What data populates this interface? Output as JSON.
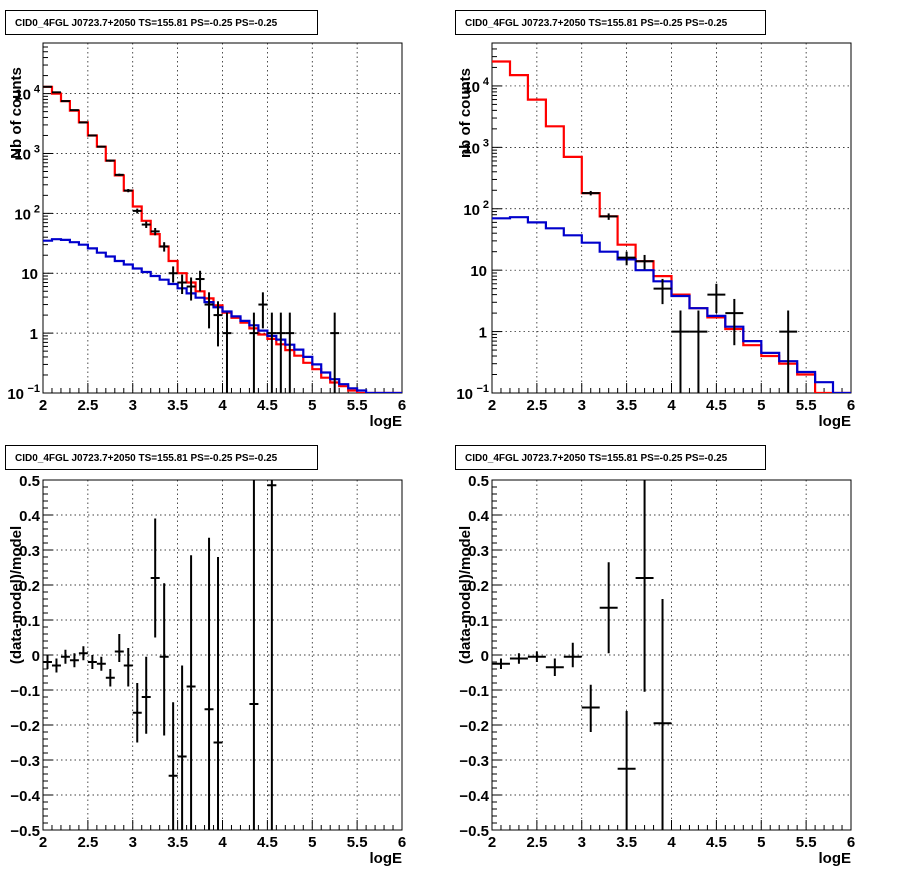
{
  "chart_data": [
    {
      "type": "histogram",
      "title": "CID0_4FGL J0723.7+2050 TS=155.81 PS=-0.25 PS=-0.25",
      "xlabel": "logE",
      "ylabel": "Nb of counts",
      "xlim": [
        2,
        6
      ],
      "ylim": [
        0.1,
        70000
      ],
      "yscale": "log",
      "grid": true,
      "xticks": [
        "2",
        "2.5",
        "3",
        "3.5",
        "4",
        "4.5",
        "5",
        "5.5",
        "6"
      ],
      "yticks": [
        {
          "v": 0.1,
          "label": "10",
          "sup": "−1"
        },
        {
          "v": 1,
          "label": "1",
          "sup": ""
        },
        {
          "v": 10,
          "label": "10",
          "sup": ""
        },
        {
          "v": 100,
          "label": "10",
          "sup": "2"
        },
        {
          "v": 1000,
          "label": "10",
          "sup": "3"
        },
        {
          "v": 10000,
          "label": "10",
          "sup": "4"
        }
      ],
      "series": [
        {
          "kind": "step",
          "color": "#ff0000",
          "edges": [
            2.0,
            2.1,
            2.2,
            2.3,
            2.4,
            2.5,
            2.6,
            2.7,
            2.8,
            2.9,
            3.0,
            3.1,
            3.2,
            3.3,
            3.4,
            3.5,
            3.6,
            3.7,
            3.8,
            3.9,
            4.0,
            4.1,
            4.2,
            4.3,
            4.4,
            4.5,
            4.6,
            4.7,
            4.8,
            4.9,
            5.0,
            5.1,
            5.2,
            5.3,
            5.4,
            5.5,
            5.6,
            5.7,
            5.8,
            5.9,
            6.0
          ],
          "values": [
            13000,
            10000,
            7500,
            5200,
            3300,
            2000,
            1300,
            760,
            430,
            240,
            130,
            75,
            45,
            28,
            16,
            10,
            7,
            5,
            3.8,
            2.9,
            2.2,
            1.8,
            1.5,
            1.2,
            0.95,
            0.8,
            0.65,
            0.52,
            0.42,
            0.32,
            0.25,
            0.18,
            0.15,
            0.13,
            0.11,
            0.1,
            0.1,
            0.1,
            0.1,
            0.1
          ]
        },
        {
          "kind": "step",
          "color": "#0000cc",
          "edges": [
            2.0,
            2.1,
            2.2,
            2.3,
            2.4,
            2.5,
            2.6,
            2.7,
            2.8,
            2.9,
            3.0,
            3.1,
            3.2,
            3.3,
            3.4,
            3.5,
            3.6,
            3.7,
            3.8,
            3.9,
            4.0,
            4.1,
            4.2,
            4.3,
            4.4,
            4.5,
            4.6,
            4.7,
            4.8,
            4.9,
            5.0,
            5.1,
            5.2,
            5.3,
            5.4,
            5.5,
            5.6,
            5.7,
            5.8,
            5.9,
            6.0
          ],
          "values": [
            35,
            37,
            36,
            33,
            30,
            26,
            22,
            19,
            16,
            14,
            12,
            10.5,
            9,
            7.8,
            6.6,
            5.6,
            4.6,
            3.9,
            3.3,
            2.7,
            2.3,
            1.9,
            1.6,
            1.35,
            1.1,
            0.9,
            0.78,
            0.64,
            0.53,
            0.4,
            0.3,
            0.22,
            0.17,
            0.14,
            0.12,
            0.11,
            0.1,
            0.1,
            0.1,
            0.1
          ]
        },
        {
          "kind": "points",
          "color": "#000000",
          "points": [
            {
              "x": 2.05,
              "y": 13000,
              "ylo": 12900,
              "yhi": 13100
            },
            {
              "x": 2.15,
              "y": 10500,
              "ylo": 10400,
              "yhi": 10600
            },
            {
              "x": 2.25,
              "y": 7500,
              "ylo": 7400,
              "yhi": 7600
            },
            {
              "x": 2.35,
              "y": 5300,
              "ylo": 5200,
              "yhi": 5400
            },
            {
              "x": 2.45,
              "y": 3300,
              "ylo": 3240,
              "yhi": 3360
            },
            {
              "x": 2.55,
              "y": 2000,
              "ylo": 1960,
              "yhi": 2040
            },
            {
              "x": 2.65,
              "y": 1300,
              "ylo": 1260,
              "yhi": 1340
            },
            {
              "x": 2.75,
              "y": 760,
              "ylo": 730,
              "yhi": 790
            },
            {
              "x": 2.85,
              "y": 440,
              "ylo": 420,
              "yhi": 460
            },
            {
              "x": 2.95,
              "y": 240,
              "ylo": 225,
              "yhi": 255
            },
            {
              "x": 3.05,
              "y": 110,
              "ylo": 100,
              "yhi": 120
            },
            {
              "x": 3.15,
              "y": 65,
              "ylo": 57,
              "yhi": 73
            },
            {
              "x": 3.25,
              "y": 50,
              "ylo": 43,
              "yhi": 57
            },
            {
              "x": 3.35,
              "y": 28,
              "ylo": 23,
              "yhi": 33
            },
            {
              "x": 3.45,
              "y": 10,
              "ylo": 7,
              "yhi": 13
            },
            {
              "x": 3.55,
              "y": 7,
              "ylo": 4.5,
              "yhi": 9.5
            },
            {
              "x": 3.65,
              "y": 6,
              "ylo": 3.5,
              "yhi": 8.5
            },
            {
              "x": 3.75,
              "y": 8,
              "ylo": 5,
              "yhi": 11
            },
            {
              "x": 3.85,
              "y": 3,
              "ylo": 1.2,
              "yhi": 4.8
            },
            {
              "x": 3.95,
              "y": 2,
              "ylo": 0.6,
              "yhi": 3.4
            },
            {
              "x": 4.05,
              "y": 1,
              "ylo": 0.05,
              "yhi": 2.2
            },
            {
              "x": 4.35,
              "y": 1,
              "ylo": 0.05,
              "yhi": 2.2
            },
            {
              "x": 4.45,
              "y": 3,
              "ylo": 1.2,
              "yhi": 4.8
            },
            {
              "x": 4.55,
              "y": 1,
              "ylo": 0.05,
              "yhi": 2.2
            },
            {
              "x": 4.65,
              "y": 1,
              "ylo": 0.05,
              "yhi": 2.2
            },
            {
              "x": 4.75,
              "y": 1,
              "ylo": 0.05,
              "yhi": 2.2
            },
            {
              "x": 5.25,
              "y": 1,
              "ylo": 0.05,
              "yhi": 2.2
            }
          ]
        }
      ]
    },
    {
      "type": "histogram",
      "title": "CID0_4FGL J0723.7+2050 TS=155.81 PS=-0.25 PS=-0.25",
      "xlabel": "logE",
      "ylabel": "nb of counts",
      "xlim": [
        2,
        6
      ],
      "ylim": [
        0.1,
        50000
      ],
      "yscale": "log",
      "grid": true,
      "xticks": [
        "2",
        "2.5",
        "3",
        "3.5",
        "4",
        "4.5",
        "5",
        "5.5",
        "6"
      ],
      "yticks": [
        {
          "v": 0.1,
          "label": "10",
          "sup": "−1"
        },
        {
          "v": 1,
          "label": "1",
          "sup": ""
        },
        {
          "v": 10,
          "label": "10",
          "sup": ""
        },
        {
          "v": 100,
          "label": "10",
          "sup": "2"
        },
        {
          "v": 1000,
          "label": "10",
          "sup": "3"
        },
        {
          "v": 10000,
          "label": "10",
          "sup": "4"
        }
      ],
      "series": [
        {
          "kind": "step",
          "color": "#ff0000",
          "edges": [
            2.0,
            2.2,
            2.4,
            2.6,
            2.8,
            3.0,
            3.2,
            3.4,
            3.6,
            3.8,
            4.0,
            4.2,
            4.4,
            4.6,
            4.8,
            5.0,
            5.2,
            5.4,
            5.6,
            5.8,
            6.0
          ],
          "values": [
            25000,
            15000,
            6000,
            2200,
            700,
            180,
            75,
            26,
            14,
            8,
            4,
            2.4,
            1.7,
            1.1,
            0.6,
            0.4,
            0.3,
            0.2,
            0.1,
            0.1
          ]
        },
        {
          "kind": "step",
          "color": "#0000cc",
          "edges": [
            2.0,
            2.2,
            2.4,
            2.6,
            2.8,
            3.0,
            3.2,
            3.4,
            3.6,
            3.8,
            4.0,
            4.2,
            4.4,
            4.6,
            4.8,
            5.0,
            5.2,
            5.4,
            5.6,
            5.8,
            6.0
          ],
          "values": [
            70,
            73,
            60,
            48,
            37,
            28,
            20,
            15,
            10,
            6.6,
            3.8,
            2.4,
            1.8,
            1.2,
            0.7,
            0.45,
            0.33,
            0.22,
            0.15,
            0.1
          ]
        },
        {
          "kind": "points",
          "color": "#000000",
          "points": [
            {
              "x": 3.1,
              "y": 180,
              "ylo": 165,
              "yhi": 195
            },
            {
              "x": 3.3,
              "y": 75,
              "ylo": 66,
              "yhi": 84
            },
            {
              "x": 3.5,
              "y": 16,
              "ylo": 12,
              "yhi": 20
            },
            {
              "x": 3.7,
              "y": 14,
              "ylo": 10.3,
              "yhi": 17.7
            },
            {
              "x": 3.9,
              "y": 5,
              "ylo": 2.8,
              "yhi": 7.2
            },
            {
              "x": 4.1,
              "y": 1,
              "ylo": 0.05,
              "yhi": 2.2
            },
            {
              "x": 4.3,
              "y": 1,
              "ylo": 0.05,
              "yhi": 2.2
            },
            {
              "x": 4.5,
              "y": 4,
              "ylo": 2,
              "yhi": 6
            },
            {
              "x": 4.7,
              "y": 2,
              "ylo": 0.6,
              "yhi": 3.4
            },
            {
              "x": 5.3,
              "y": 1,
              "ylo": 0.05,
              "yhi": 2.2
            }
          ]
        }
      ]
    },
    {
      "type": "scatter",
      "title": "CID0_4FGL J0723.7+2050 TS=155.81 PS=-0.25 PS=-0.25",
      "xlabel": "logE",
      "ylabel": "(data-model)/model",
      "xlim": [
        2,
        6
      ],
      "ylim": [
        -0.5,
        0.5
      ],
      "yscale": "linear",
      "grid": true,
      "xticks": [
        "2",
        "2.5",
        "3",
        "3.5",
        "4",
        "4.5",
        "5",
        "5.5",
        "6"
      ],
      "ytick_values": [
        -0.5,
        -0.4,
        -0.3,
        -0.2,
        -0.1,
        0,
        0.1,
        0.2,
        0.3,
        0.4,
        0.5
      ],
      "ytick_labels": [
        "−0.5",
        "−0.4",
        "−0.3",
        "−0.2",
        "−0.1",
        "0",
        "0.1",
        "0.2",
        "0.3",
        "0.4",
        "0.5"
      ],
      "series": [
        {
          "kind": "points",
          "color": "#000000",
          "points": [
            {
              "x": 2.05,
              "y": -0.02,
              "ylo": -0.04,
              "yhi": 0.0
            },
            {
              "x": 2.15,
              "y": -0.03,
              "ylo": -0.05,
              "yhi": -0.01
            },
            {
              "x": 2.25,
              "y": -0.005,
              "ylo": -0.025,
              "yhi": 0.015
            },
            {
              "x": 2.35,
              "y": -0.015,
              "ylo": -0.035,
              "yhi": 0.005
            },
            {
              "x": 2.45,
              "y": 0.005,
              "ylo": -0.015,
              "yhi": 0.025
            },
            {
              "x": 2.55,
              "y": -0.02,
              "ylo": -0.04,
              "yhi": 0.0
            },
            {
              "x": 2.65,
              "y": -0.025,
              "ylo": -0.045,
              "yhi": -0.005
            },
            {
              "x": 2.75,
              "y": -0.065,
              "ylo": -0.09,
              "yhi": -0.04
            },
            {
              "x": 2.85,
              "y": 0.01,
              "ylo": -0.02,
              "yhi": 0.06
            },
            {
              "x": 2.95,
              "y": -0.03,
              "ylo": -0.09,
              "yhi": 0.02
            },
            {
              "x": 3.05,
              "y": -0.165,
              "ylo": -0.25,
              "yhi": -0.08
            },
            {
              "x": 3.15,
              "y": -0.12,
              "ylo": -0.225,
              "yhi": -0.005
            },
            {
              "x": 3.25,
              "y": 0.22,
              "ylo": 0.05,
              "yhi": 0.39
            },
            {
              "x": 3.35,
              "y": -0.005,
              "ylo": -0.23,
              "yhi": 0.205
            },
            {
              "x": 3.45,
              "y": -0.345,
              "ylo": -0.5,
              "yhi": -0.135
            },
            {
              "x": 3.55,
              "y": -0.29,
              "ylo": -0.5,
              "yhi": -0.03
            },
            {
              "x": 3.65,
              "y": -0.09,
              "ylo": -0.5,
              "yhi": 0.285
            },
            {
              "x": 3.85,
              "y": -0.155,
              "ylo": -0.5,
              "yhi": 0.335
            },
            {
              "x": 3.95,
              "y": -0.25,
              "ylo": -0.5,
              "yhi": 0.28
            },
            {
              "x": 4.35,
              "y": -0.14,
              "ylo": -0.5,
              "yhi": 0.5
            },
            {
              "x": 4.55,
              "y": 0.485,
              "ylo": -0.5,
              "yhi": 0.5
            }
          ]
        }
      ]
    },
    {
      "type": "scatter",
      "title": "CID0_4FGL J0723.7+2050 TS=155.81 PS=-0.25 PS=-0.25",
      "xlabel": "logE",
      "ylabel": "(data-model)/model",
      "xlim": [
        2,
        6
      ],
      "ylim": [
        -0.5,
        0.5
      ],
      "yscale": "linear",
      "grid": true,
      "xticks": [
        "2",
        "2.5",
        "3",
        "3.5",
        "4",
        "4.5",
        "5",
        "5.5",
        "6"
      ],
      "ytick_values": [
        -0.5,
        -0.4,
        -0.3,
        -0.2,
        -0.1,
        0,
        0.1,
        0.2,
        0.3,
        0.4,
        0.5
      ],
      "ytick_labels": [
        "−0.5",
        "−0.4",
        "−0.3",
        "−0.2",
        "−0.1",
        "0",
        "0.1",
        "0.2",
        "0.3",
        "0.4",
        "0.5"
      ],
      "series": [
        {
          "kind": "points",
          "color": "#000000",
          "points": [
            {
              "x": 2.1,
              "y": -0.025,
              "ylo": -0.04,
              "yhi": -0.01
            },
            {
              "x": 2.3,
              "y": -0.01,
              "ylo": -0.025,
              "yhi": 0.005
            },
            {
              "x": 2.5,
              "y": -0.005,
              "ylo": -0.02,
              "yhi": 0.01
            },
            {
              "x": 2.7,
              "y": -0.035,
              "ylo": -0.06,
              "yhi": -0.01
            },
            {
              "x": 2.9,
              "y": -0.005,
              "ylo": -0.035,
              "yhi": 0.035
            },
            {
              "x": 3.1,
              "y": -0.15,
              "ylo": -0.22,
              "yhi": -0.085
            },
            {
              "x": 3.3,
              "y": 0.135,
              "ylo": 0.005,
              "yhi": 0.265
            },
            {
              "x": 3.5,
              "y": -0.325,
              "ylo": -0.5,
              "yhi": -0.16
            },
            {
              "x": 3.7,
              "y": 0.22,
              "ylo": -0.105,
              "yhi": 0.5
            },
            {
              "x": 3.9,
              "y": -0.195,
              "ylo": -0.5,
              "yhi": 0.16
            }
          ]
        }
      ]
    }
  ]
}
